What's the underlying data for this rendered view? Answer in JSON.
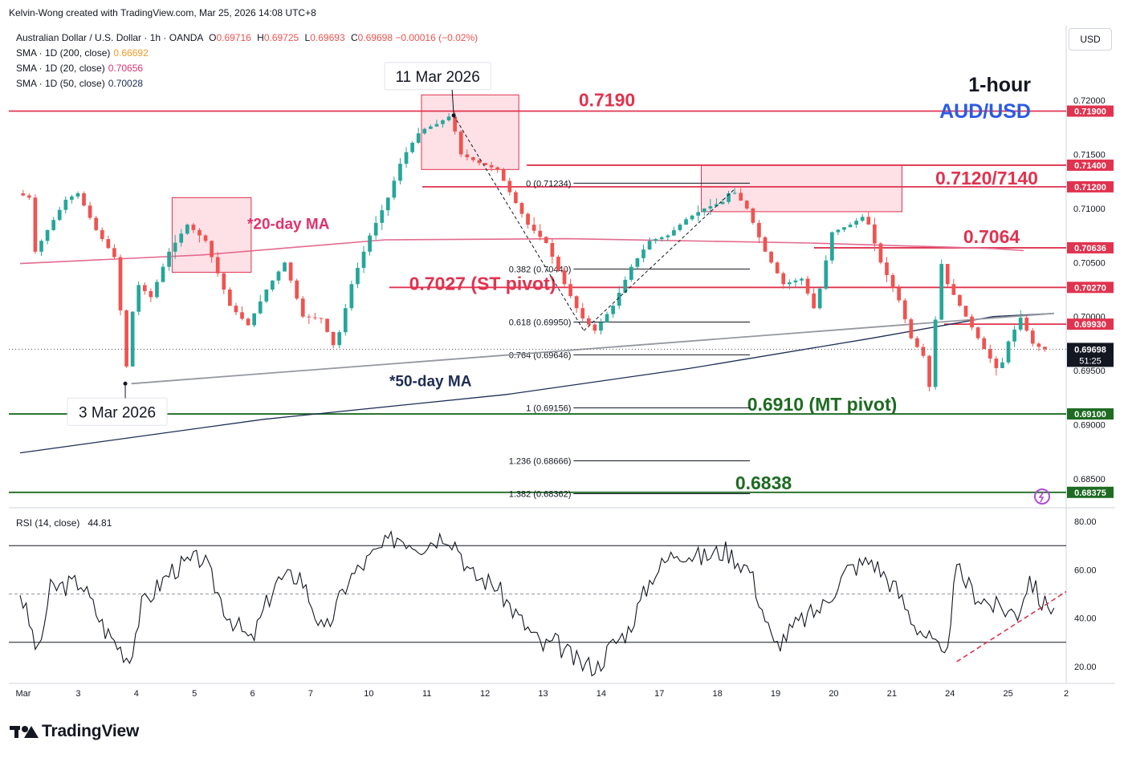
{
  "header": {
    "credit": "Kelvin-Wong created with TradingView.com, Mar 25, 2026 14:08 UTC+8"
  },
  "legend": {
    "symbol": "Australian Dollar / U.S. Dollar · 1h · OANDA",
    "ohlc": [
      {
        "k": "O",
        "v": "0.69716"
      },
      {
        "k": "H",
        "v": "0.69725"
      },
      {
        "k": "L",
        "v": "0.69693"
      },
      {
        "k": "C",
        "v": "0.69698"
      }
    ],
    "change": "−0.00016 (−0.02%)",
    "sma200_label": "SMA · 1D (200, close)",
    "sma200_value": "0.66692",
    "sma20_label": "SMA · 1D (20, close)",
    "sma20_value": "0.70656",
    "sma50_label": "SMA · 1D (50, close)",
    "sma50_value": "0.70028",
    "rsi_label": "RSI (14, close)",
    "rsi_value": "44.81"
  },
  "title_block": {
    "timeframe": "1-hour",
    "pair": "AUD/USD"
  },
  "currency_button": "USD",
  "brand": "TradingView",
  "colors": {
    "resistance": "#e0334f",
    "support": "#1e6b22",
    "sma20": "#e36a8e",
    "sma50": "#1e2d55",
    "up": "#26a69a",
    "down": "#ef5350",
    "zone": "rgba(242,88,122,0.18)",
    "price_line": "#555555"
  },
  "chart_data": [
    {
      "type": "candlestick",
      "title": "Australian Dollar / U.S. Dollar · 1h · OANDA",
      "ylim": [
        0.6824,
        0.7269
      ],
      "y_ticks": [
        "0.72500",
        "0.72000",
        "0.71500",
        "0.71000",
        "0.70500",
        "0.70000",
        "0.69500",
        "0.69000",
        "0.68500"
      ],
      "x_ticks": [
        "Mar",
        "3",
        "4",
        "5",
        "6",
        "7",
        "10",
        "11",
        "12",
        "13",
        "14",
        "17",
        "18",
        "19",
        "20",
        "21",
        "24",
        "25",
        "2"
      ],
      "price_path": [
        [
          0,
          0.7114
        ],
        [
          2,
          0.711
        ],
        [
          3,
          0.706
        ],
        [
          5,
          0.708
        ],
        [
          8,
          0.7108
        ],
        [
          10,
          0.7114
        ],
        [
          13,
          0.708
        ],
        [
          16,
          0.7055
        ],
        [
          17.3,
          0.6991
        ],
        [
          18.3,
          0.6938
        ],
        [
          19.3,
          0.7033
        ],
        [
          22,
          0.7018
        ],
        [
          25,
          0.706
        ],
        [
          28,
          0.7085
        ],
        [
          31,
          0.707
        ],
        [
          35,
          0.701
        ],
        [
          38,
          0.6992
        ],
        [
          41,
          0.7025
        ],
        [
          44,
          0.705
        ],
        [
          47,
          0.7
        ],
        [
          50,
          0.6998
        ],
        [
          52.3,
          0.697
        ],
        [
          55,
          0.703
        ],
        [
          58,
          0.7075
        ],
        [
          61,
          0.711
        ],
        [
          63.3,
          0.7146
        ],
        [
          66.3,
          0.7172
        ],
        [
          69,
          0.7178
        ],
        [
          71.3,
          0.7186
        ],
        [
          73,
          0.715
        ],
        [
          76,
          0.7142
        ],
        [
          79,
          0.7136
        ],
        [
          81,
          0.7115
        ],
        [
          84,
          0.7085
        ],
        [
          87,
          0.7068
        ],
        [
          90,
          0.703
        ],
        [
          92.7,
          0.7
        ],
        [
          95,
          0.6987
        ],
        [
          98,
          0.701
        ],
        [
          101,
          0.7046
        ],
        [
          104,
          0.707
        ],
        [
          107,
          0.7075
        ],
        [
          110,
          0.709
        ],
        [
          113,
          0.71
        ],
        [
          116,
          0.7106
        ],
        [
          117.5,
          0.7118
        ],
        [
          120,
          0.71
        ],
        [
          123,
          0.706
        ],
        [
          126,
          0.703
        ],
        [
          129,
          0.7035
        ],
        [
          131.2,
          0.7005
        ],
        [
          134,
          0.7078
        ],
        [
          137,
          0.7085
        ],
        [
          139.5,
          0.7094
        ],
        [
          142,
          0.705
        ],
        [
          145,
          0.7015
        ],
        [
          147,
          0.698
        ],
        [
          149.7,
          0.6958
        ],
        [
          150.3,
          0.6912
        ],
        [
          151.5,
          0.7058
        ],
        [
          153,
          0.703
        ],
        [
          156,
          0.7
        ],
        [
          159,
          0.697
        ],
        [
          161.5,
          0.6948
        ],
        [
          163,
          0.6977
        ],
        [
          165,
          0.6999
        ],
        [
          167,
          0.6975
        ],
        [
          168.8,
          0.69698
        ]
      ],
      "sma20_path": [
        [
          0,
          0.7049
        ],
        [
          30,
          0.7057
        ],
        [
          60,
          0.7071
        ],
        [
          90,
          0.7072
        ],
        [
          130,
          0.7068
        ],
        [
          160,
          0.7063
        ],
        [
          165,
          0.7061
        ]
      ],
      "sma50_path": [
        [
          0,
          0.6874
        ],
        [
          40,
          0.6905
        ],
        [
          80,
          0.6928
        ],
        [
          110,
          0.6952
        ],
        [
          140,
          0.698
        ],
        [
          160,
          0.7
        ],
        [
          170,
          0.7003
        ]
      ],
      "trendline": [
        [
          18.3,
          0.6938
        ],
        [
          170,
          0.7003
        ]
      ],
      "fib_levels": [
        {
          "label": "0 (0.71234)",
          "value": 0.71234
        },
        {
          "label": "0.382 (0.70440)",
          "value": 0.7044
        },
        {
          "label": "0.618 (0.69950)",
          "value": 0.6995
        },
        {
          "label": "0.764 (0.69646)",
          "value": 0.69646
        },
        {
          "label": "1 (0.69156)",
          "value": 0.69156
        },
        {
          "label": "1.236 (0.68666)",
          "value": 0.68666
        },
        {
          "label": "1.382 (0.68362)",
          "value": 0.68362
        }
      ],
      "levels": [
        {
          "value": 0.719,
          "kind": "resistance",
          "axis_label": "0.71900",
          "label": "0.7190"
        },
        {
          "value": 0.714,
          "kind": "resistance",
          "axis_label": "0.71400",
          "label": ""
        },
        {
          "value": 0.712,
          "kind": "resistance",
          "axis_label": "0.71200",
          "label": "0.7120/7140"
        },
        {
          "value": 0.70636,
          "kind": "resistance",
          "axis_label": "0.70636",
          "label": "0.7064"
        },
        {
          "value": 0.7027,
          "kind": "resistance",
          "axis_label": "0.70270",
          "label": "0.7027 (ST pivot)"
        },
        {
          "value": 0.6993,
          "kind": "resistance",
          "axis_label": "0.69930",
          "label": ""
        },
        {
          "value": 0.691,
          "kind": "support",
          "axis_label": "0.69100",
          "label": "0.6910 (MT pivot)"
        },
        {
          "value": 0.68375,
          "kind": "support",
          "axis_label": "0.68375",
          "label": "0.6838"
        }
      ],
      "zones": [
        {
          "from_x": 25,
          "to_x": 38,
          "high": 0.711,
          "low": 0.7041
        },
        {
          "from_x": 66,
          "to_x": 82,
          "high": 0.7205,
          "low": 0.7136
        },
        {
          "from_x": 112,
          "to_x": 145,
          "high": 0.714,
          "low": 0.7097
        }
      ],
      "current_price": {
        "value": "0.69698",
        "countdown": "51:25"
      },
      "annotations": {
        "high_date": "11 Mar 2026",
        "low_date": "3 Mar 2026",
        "sma20": "*20-day MA",
        "sma50": "*50-day MA"
      }
    },
    {
      "type": "line",
      "title": "RSI (14, close)",
      "ylim": [
        13,
        85
      ],
      "y_ticks": [
        "80.00",
        "60.00",
        "40.00",
        "20.00"
      ],
      "bands": [
        70,
        50,
        30
      ],
      "series": [
        {
          "values": [
            [
              0,
              51
            ],
            [
              3,
              25
            ],
            [
              5,
              52
            ],
            [
              10,
              55
            ],
            [
              14,
              35
            ],
            [
              18,
              23
            ],
            [
              20,
              45
            ],
            [
              25,
              60
            ],
            [
              30,
              65
            ],
            [
              34,
              42
            ],
            [
              38,
              30
            ],
            [
              42,
              55
            ],
            [
              46,
              58
            ],
            [
              50,
              33
            ],
            [
              54,
              56
            ],
            [
              58,
              66
            ],
            [
              62,
              74
            ],
            [
              66,
              70
            ],
            [
              70,
              75
            ],
            [
              72,
              70
            ],
            [
              74,
              58
            ],
            [
              78,
              54
            ],
            [
              82,
              40
            ],
            [
              86,
              28
            ],
            [
              88,
              30
            ],
            [
              92,
              21
            ],
            [
              95,
              20
            ],
            [
              97,
              28
            ],
            [
              100,
              35
            ],
            [
              104,
              58
            ],
            [
              108,
              68
            ],
            [
              112,
              65
            ],
            [
              116,
              68
            ],
            [
              120,
              60
            ],
            [
              124,
              28
            ],
            [
              128,
              38
            ],
            [
              132,
              45
            ],
            [
              136,
              60
            ],
            [
              140,
              64
            ],
            [
              144,
              52
            ],
            [
              147,
              38
            ],
            [
              150,
              30
            ],
            [
              152,
              22
            ],
            [
              154,
              60
            ],
            [
              157,
              50
            ],
            [
              160,
              45
            ],
            [
              164,
              42
            ],
            [
              166,
              57
            ],
            [
              168,
              46
            ],
            [
              170,
              45
            ]
          ]
        }
      ],
      "trendline": [
        [
          154,
          22
        ],
        [
          172,
          51
        ]
      ]
    }
  ]
}
